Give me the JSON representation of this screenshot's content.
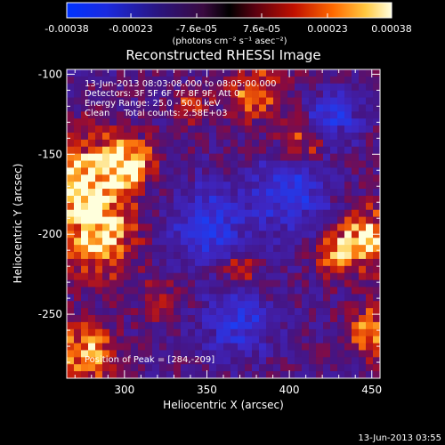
{
  "chart_data": {
    "type": "heatmap",
    "title": "Reconstructed RHESSI Image",
    "xlabel": "Heliocentric X (arcsec)",
    "ylabel": "Heliocentric Y (arcsec)",
    "xlim": [
      265,
      455
    ],
    "ylim": [
      -290,
      -97
    ],
    "x_ticks": [
      "300",
      "350",
      "400",
      "450"
    ],
    "x_tick_values": [
      300,
      350,
      400,
      450
    ],
    "y_ticks": [
      "-100",
      "-150",
      "-200",
      "-250"
    ],
    "y_tick_values": [
      -100,
      -150,
      -200,
      -250
    ],
    "colorbar": {
      "ticks": [
        "-0.00038",
        "-0.00023",
        "-7.6e-05",
        "7.6e-05",
        "0.00023",
        "0.00038"
      ],
      "tick_values": [
        -0.00038,
        -0.00023,
        -7.6e-05,
        7.6e-05,
        0.00023,
        0.00038
      ],
      "range": [
        -0.00038,
        0.00038
      ],
      "unit_label": "(photons cm⁻² s⁻¹ asec⁻²)"
    },
    "annotations": [
      "13-Jun-2013 08:03:08.000 to 08:05:00.000",
      "Detectors: 3F 5F 6F 7F 8F 9F, Att 0",
      "Energy Range: 25.0 - 50.0 keV",
      "Clean     Total counts: 2.58E+03"
    ],
    "peak_label": "Position of Peak = [284,-209]",
    "peak_position": [
      284,
      -209
    ],
    "grid": false
  },
  "footer": {
    "timestamp": "13-Jun-2013 03:55"
  },
  "colors": {
    "background": "#000000",
    "axes": "#ffffff",
    "text": "#ffffff"
  }
}
